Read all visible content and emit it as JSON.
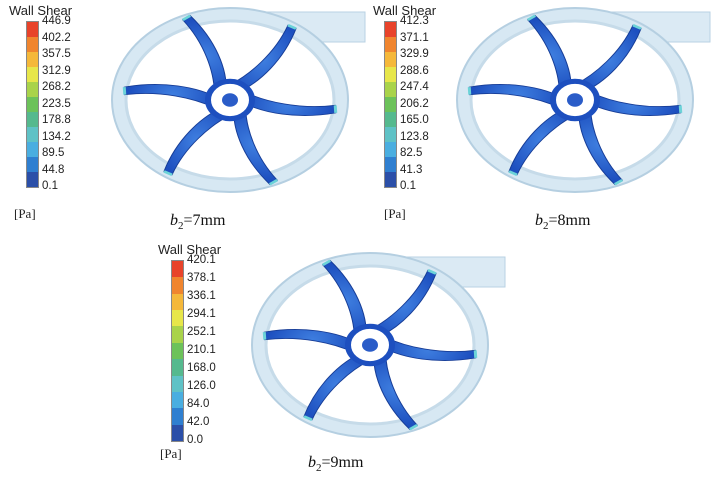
{
  "figure": {
    "panels": [
      {
        "legend_title": "Wall Shear",
        "ticks": [
          "446.9",
          "402.2",
          "357.5",
          "312.9",
          "268.2",
          "223.5",
          "178.8",
          "134.2",
          "89.5",
          "44.8",
          "0.1"
        ],
        "unit": "[Pa]",
        "caption_var": "b",
        "caption_sub": "2",
        "caption_value": "=7mm"
      },
      {
        "legend_title": "Wall Shear",
        "ticks": [
          "412.3",
          "371.1",
          "329.9",
          "288.6",
          "247.4",
          "206.2",
          "165.0",
          "123.8",
          "82.5",
          "41.3",
          "0.1"
        ],
        "unit": "[Pa]",
        "caption_var": "b",
        "caption_sub": "2",
        "caption_value": "=8mm"
      },
      {
        "legend_title": "Wall Shear",
        "ticks": [
          "420.1",
          "378.1",
          "336.1",
          "294.1",
          "252.1",
          "210.1",
          "168.0",
          "126.0",
          "84.0",
          "42.0",
          "0.0"
        ],
        "unit": "[Pa]",
        "caption_var": "b",
        "caption_sub": "2",
        "caption_value": "=9mm"
      }
    ],
    "colormap": [
      "#e8432a",
      "#f0852e",
      "#f5b83a",
      "#e7e64a",
      "#a9d34a",
      "#6cc25a",
      "#55b98e",
      "#5fc2c6",
      "#4aaee0",
      "#2f7fd0",
      "#2b4fa8"
    ]
  }
}
